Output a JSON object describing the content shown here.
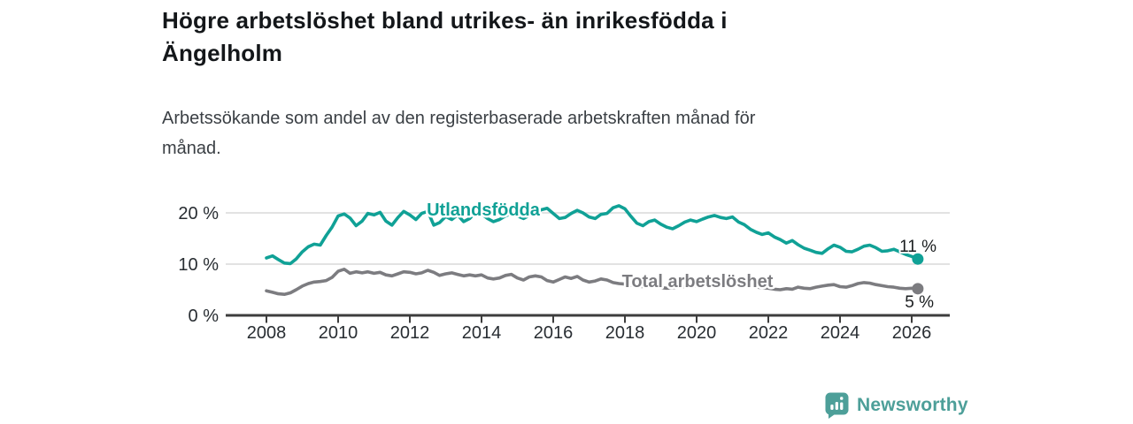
{
  "header": {
    "title_line1": "Högre arbetslöshet bland utrikes- än inrikesfödda i",
    "title_line2": "Ängelholm",
    "subtitle_line1": "Arbetssökande som andel av den registerbaserade arbetskraften månad för",
    "subtitle_line2": "månad."
  },
  "footer": {
    "brand": "Newsworthy"
  },
  "colors": {
    "accent_teal": "#10a196",
    "series_gray": "#7c7c80",
    "logo_teal": "#4d9f99",
    "grid": "#d9d9d9",
    "axis": "#3d3d3d"
  },
  "chart_data": {
    "type": "line",
    "title": "Högre arbetslöshet bland utrikes- än inrikesfödda i Ängelholm",
    "subtitle": "Arbetssökande som andel av den registerbaserade arbetskraften månad för månad.",
    "unit": "%",
    "grid": "horizontal-only",
    "legend": "inline-labels",
    "x_axis": {
      "ticks": [
        2008,
        2010,
        2012,
        2014,
        2016,
        2018,
        2020,
        2022,
        2024,
        2026
      ],
      "range": [
        2006.85,
        2027.05
      ]
    },
    "y_axis": {
      "ticks": [
        {
          "value": 0,
          "label": "0 %"
        },
        {
          "value": 10,
          "label": "10 %"
        },
        {
          "value": 20,
          "label": "20 %"
        }
      ],
      "range": [
        0,
        25
      ]
    },
    "series": [
      {
        "name": "Utlandsfödda",
        "color": "#10a196",
        "end_label": "11 %",
        "end_value": 11,
        "points": [
          [
            2008.0,
            11.2
          ],
          [
            2008.17,
            11.6
          ],
          [
            2008.33,
            10.9
          ],
          [
            2008.5,
            10.2
          ],
          [
            2008.67,
            10.1
          ],
          [
            2008.83,
            11.0
          ],
          [
            2009.0,
            12.4
          ],
          [
            2009.17,
            13.4
          ],
          [
            2009.33,
            13.9
          ],
          [
            2009.5,
            13.7
          ],
          [
            2009.67,
            15.6
          ],
          [
            2009.83,
            17.2
          ],
          [
            2010.0,
            19.4
          ],
          [
            2010.17,
            19.8
          ],
          [
            2010.33,
            19.0
          ],
          [
            2010.5,
            17.5
          ],
          [
            2010.67,
            18.4
          ],
          [
            2010.83,
            19.9
          ],
          [
            2011.0,
            19.6
          ],
          [
            2011.17,
            20.1
          ],
          [
            2011.33,
            18.4
          ],
          [
            2011.5,
            17.6
          ],
          [
            2011.67,
            19.1
          ],
          [
            2011.83,
            20.3
          ],
          [
            2012.0,
            19.6
          ],
          [
            2012.17,
            18.7
          ],
          [
            2012.33,
            19.9
          ],
          [
            2012.5,
            20.3
          ],
          [
            2012.67,
            17.6
          ],
          [
            2012.83,
            18.1
          ],
          [
            2013.0,
            19.3
          ],
          [
            2013.17,
            18.7
          ],
          [
            2013.33,
            19.6
          ],
          [
            2013.5,
            18.3
          ],
          [
            2013.67,
            18.9
          ],
          [
            2013.83,
            20.1
          ],
          [
            2014.0,
            19.8
          ],
          [
            2014.17,
            18.9
          ],
          [
            2014.33,
            18.3
          ],
          [
            2014.5,
            18.7
          ],
          [
            2014.67,
            19.4
          ],
          [
            2014.83,
            19.9
          ],
          [
            2015.0,
            19.4
          ],
          [
            2015.17,
            18.9
          ],
          [
            2015.33,
            19.5
          ],
          [
            2015.5,
            20.2
          ],
          [
            2015.67,
            20.6
          ],
          [
            2015.83,
            20.9
          ],
          [
            2016.0,
            19.9
          ],
          [
            2016.17,
            18.9
          ],
          [
            2016.33,
            19.1
          ],
          [
            2016.5,
            19.9
          ],
          [
            2016.67,
            20.5
          ],
          [
            2016.83,
            20.0
          ],
          [
            2017.0,
            19.2
          ],
          [
            2017.17,
            18.9
          ],
          [
            2017.33,
            19.7
          ],
          [
            2017.5,
            19.9
          ],
          [
            2017.67,
            21.0
          ],
          [
            2017.83,
            21.4
          ],
          [
            2018.0,
            20.8
          ],
          [
            2018.17,
            19.3
          ],
          [
            2018.33,
            18.0
          ],
          [
            2018.5,
            17.5
          ],
          [
            2018.67,
            18.3
          ],
          [
            2018.83,
            18.6
          ],
          [
            2019.0,
            17.8
          ],
          [
            2019.17,
            17.2
          ],
          [
            2019.33,
            16.9
          ],
          [
            2019.5,
            17.5
          ],
          [
            2019.67,
            18.2
          ],
          [
            2019.83,
            18.6
          ],
          [
            2020.0,
            18.3
          ],
          [
            2020.17,
            18.8
          ],
          [
            2020.33,
            19.2
          ],
          [
            2020.5,
            19.5
          ],
          [
            2020.67,
            19.1
          ],
          [
            2020.83,
            18.9
          ],
          [
            2021.0,
            19.2
          ],
          [
            2021.17,
            18.2
          ],
          [
            2021.33,
            17.7
          ],
          [
            2021.5,
            16.8
          ],
          [
            2021.67,
            16.2
          ],
          [
            2021.83,
            15.8
          ],
          [
            2022.0,
            16.1
          ],
          [
            2022.17,
            15.3
          ],
          [
            2022.33,
            14.8
          ],
          [
            2022.5,
            14.1
          ],
          [
            2022.67,
            14.6
          ],
          [
            2022.83,
            13.8
          ],
          [
            2023.0,
            13.1
          ],
          [
            2023.17,
            12.7
          ],
          [
            2023.33,
            12.3
          ],
          [
            2023.5,
            12.1
          ],
          [
            2023.67,
            13.0
          ],
          [
            2023.83,
            13.7
          ],
          [
            2024.0,
            13.3
          ],
          [
            2024.17,
            12.5
          ],
          [
            2024.33,
            12.4
          ],
          [
            2024.5,
            12.9
          ],
          [
            2024.67,
            13.5
          ],
          [
            2024.83,
            13.7
          ],
          [
            2025.0,
            13.2
          ],
          [
            2025.17,
            12.5
          ],
          [
            2025.33,
            12.6
          ],
          [
            2025.5,
            12.9
          ],
          [
            2025.67,
            12.4
          ],
          [
            2025.83,
            11.9
          ],
          [
            2026.0,
            11.5
          ],
          [
            2026.17,
            11.0
          ]
        ]
      },
      {
        "name": "Total arbetslöshet",
        "color": "#7c7c80",
        "end_label": "5 %",
        "end_value": 5,
        "points": [
          [
            2008.0,
            4.8
          ],
          [
            2008.17,
            4.5
          ],
          [
            2008.33,
            4.2
          ],
          [
            2008.5,
            4.1
          ],
          [
            2008.67,
            4.4
          ],
          [
            2008.83,
            5.0
          ],
          [
            2009.0,
            5.7
          ],
          [
            2009.17,
            6.2
          ],
          [
            2009.33,
            6.5
          ],
          [
            2009.5,
            6.6
          ],
          [
            2009.67,
            6.8
          ],
          [
            2009.83,
            7.4
          ],
          [
            2010.0,
            8.6
          ],
          [
            2010.17,
            9.0
          ],
          [
            2010.33,
            8.2
          ],
          [
            2010.5,
            8.5
          ],
          [
            2010.67,
            8.3
          ],
          [
            2010.83,
            8.5
          ],
          [
            2011.0,
            8.2
          ],
          [
            2011.17,
            8.4
          ],
          [
            2011.33,
            7.9
          ],
          [
            2011.5,
            7.7
          ],
          [
            2011.67,
            8.1
          ],
          [
            2011.83,
            8.5
          ],
          [
            2012.0,
            8.4
          ],
          [
            2012.17,
            8.1
          ],
          [
            2012.33,
            8.3
          ],
          [
            2012.5,
            8.8
          ],
          [
            2012.67,
            8.4
          ],
          [
            2012.83,
            7.8
          ],
          [
            2013.0,
            8.1
          ],
          [
            2013.17,
            8.3
          ],
          [
            2013.33,
            8.0
          ],
          [
            2013.5,
            7.7
          ],
          [
            2013.67,
            7.9
          ],
          [
            2013.83,
            7.7
          ],
          [
            2014.0,
            7.9
          ],
          [
            2014.17,
            7.3
          ],
          [
            2014.33,
            7.1
          ],
          [
            2014.5,
            7.3
          ],
          [
            2014.67,
            7.8
          ],
          [
            2014.83,
            8.0
          ],
          [
            2015.0,
            7.3
          ],
          [
            2015.17,
            6.9
          ],
          [
            2015.33,
            7.5
          ],
          [
            2015.5,
            7.7
          ],
          [
            2015.67,
            7.5
          ],
          [
            2015.83,
            6.8
          ],
          [
            2016.0,
            6.5
          ],
          [
            2016.17,
            7.0
          ],
          [
            2016.33,
            7.5
          ],
          [
            2016.5,
            7.2
          ],
          [
            2016.67,
            7.6
          ],
          [
            2016.83,
            6.9
          ],
          [
            2017.0,
            6.5
          ],
          [
            2017.17,
            6.7
          ],
          [
            2017.33,
            7.1
          ],
          [
            2017.5,
            6.9
          ],
          [
            2017.67,
            6.4
          ],
          [
            2017.83,
            6.2
          ],
          [
            2018.0,
            6.1
          ],
          [
            2018.17,
            5.9
          ],
          [
            2018.33,
            5.7
          ],
          [
            2018.5,
            5.6
          ],
          [
            2018.67,
            5.7
          ],
          [
            2018.83,
            5.6
          ],
          [
            2019.0,
            5.4
          ],
          [
            2019.17,
            5.3
          ],
          [
            2019.33,
            5.4
          ],
          [
            2019.5,
            5.5
          ],
          [
            2019.67,
            5.6
          ],
          [
            2019.83,
            5.7
          ],
          [
            2020.0,
            5.8
          ],
          [
            2020.17,
            6.2
          ],
          [
            2020.33,
            6.6
          ],
          [
            2020.5,
            6.7
          ],
          [
            2020.67,
            6.5
          ],
          [
            2020.83,
            6.4
          ],
          [
            2021.0,
            6.3
          ],
          [
            2021.17,
            6.1
          ],
          [
            2021.33,
            5.9
          ],
          [
            2021.5,
            5.7
          ],
          [
            2021.67,
            5.5
          ],
          [
            2021.83,
            5.4
          ],
          [
            2022.0,
            5.3
          ],
          [
            2022.17,
            5.1
          ],
          [
            2022.33,
            5.0
          ],
          [
            2022.5,
            5.2
          ],
          [
            2022.67,
            5.1
          ],
          [
            2022.83,
            5.5
          ],
          [
            2023.0,
            5.3
          ],
          [
            2023.17,
            5.2
          ],
          [
            2023.33,
            5.5
          ],
          [
            2023.5,
            5.7
          ],
          [
            2023.67,
            5.9
          ],
          [
            2023.83,
            6.0
          ],
          [
            2024.0,
            5.6
          ],
          [
            2024.17,
            5.5
          ],
          [
            2024.33,
            5.8
          ],
          [
            2024.5,
            6.2
          ],
          [
            2024.67,
            6.4
          ],
          [
            2024.83,
            6.3
          ],
          [
            2025.0,
            6.0
          ],
          [
            2025.17,
            5.8
          ],
          [
            2025.33,
            5.6
          ],
          [
            2025.5,
            5.5
          ],
          [
            2025.67,
            5.3
          ],
          [
            2025.83,
            5.2
          ],
          [
            2026.0,
            5.3
          ],
          [
            2026.17,
            5.2
          ]
        ]
      }
    ]
  }
}
